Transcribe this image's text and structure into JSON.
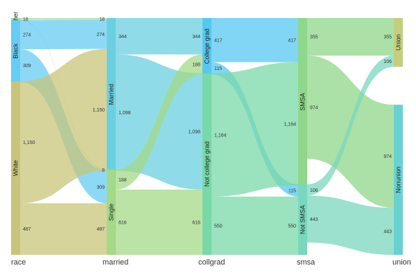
{
  "chart_data": {
    "type": "sankey",
    "axes": [
      "race",
      "married",
      "collgrad",
      "smsa",
      "union"
    ],
    "columns": [
      {
        "axis": "race",
        "nodes": [
          "Other",
          "Black",
          "White"
        ]
      },
      {
        "axis": "married",
        "nodes": [
          "Married",
          "Single"
        ]
      },
      {
        "axis": "collgrad",
        "nodes": [
          "College grad",
          "Not college grad"
        ]
      },
      {
        "axis": "smsa",
        "nodes": [
          "SMSA",
          "Not SMSA"
        ]
      },
      {
        "axis": "union",
        "nodes": [
          "Union",
          "Nonunion"
        ]
      }
    ],
    "colors": {
      "Other": "#a8dba3",
      "Black": "#66ccf2",
      "White": "#c8c47a",
      "Married": "#6ad0e0",
      "Single": "#a3d987",
      "College grad": "#56c8f0",
      "Not college grad": "#79d8a8",
      "SMSA": "#8fd78a",
      "Not SMSA": "#79d7bd",
      "Union": "#c3cf7e",
      "Nonunion": "#6ad1d1"
    },
    "flows": [
      {
        "from": "Other",
        "to": "Married",
        "value": 18,
        "left_label": "18",
        "right_label": "18"
      },
      {
        "from": "Other",
        "to": "Single",
        "value": 8,
        "left_label": "",
        "right_label": "8"
      },
      {
        "from": "Black",
        "to": "Married",
        "value": 274,
        "left_label": "274",
        "right_label": "274"
      },
      {
        "from": "Black",
        "to": "Single",
        "value": 309,
        "left_label": "309",
        "right_label": "309"
      },
      {
        "from": "White",
        "to": "Married",
        "value": 1150,
        "left_label": "1,150",
        "right_label": "1,150"
      },
      {
        "from": "White",
        "to": "Single",
        "value": 487,
        "left_label": "487",
        "right_label": "487"
      },
      {
        "from": "Married",
        "to": "College grad",
        "value": 344,
        "left_label": "344",
        "right_label": "344"
      },
      {
        "from": "Married",
        "to": "Not college grad",
        "value": 1098,
        "left_label": "1,098",
        "right_label": "1,098"
      },
      {
        "from": "Single",
        "to": "College grad",
        "value": 188,
        "left_label": "188",
        "right_label": "188"
      },
      {
        "from": "Single",
        "to": "Not college grad",
        "value": 616,
        "left_label": "616",
        "right_label": "616"
      },
      {
        "from": "College grad",
        "to": "SMSA",
        "value": 417,
        "left_label": "417",
        "right_label": "417"
      },
      {
        "from": "College grad",
        "to": "Not SMSA",
        "value": 115,
        "left_label": "115",
        "right_label": "115"
      },
      {
        "from": "Not college grad",
        "to": "SMSA",
        "value": 1164,
        "left_label": "1,164",
        "right_label": "1,164"
      },
      {
        "from": "Not college grad",
        "to": "Not SMSA",
        "value": 550,
        "left_label": "550",
        "right_label": "550"
      },
      {
        "from": "SMSA",
        "to": "Union",
        "value": 355,
        "left_label": "355",
        "right_label": "355"
      },
      {
        "from": "SMSA",
        "to": "Nonunion",
        "value": 974,
        "left_label": "974",
        "right_label": "974"
      },
      {
        "from": "Not SMSA",
        "to": "Union",
        "value": 106,
        "left_label": "106",
        "right_label": "106"
      },
      {
        "from": "Not SMSA",
        "to": "Nonunion",
        "value": 443,
        "left_label": "443",
        "right_label": "443"
      }
    ],
    "grid": false,
    "legend": "none"
  }
}
